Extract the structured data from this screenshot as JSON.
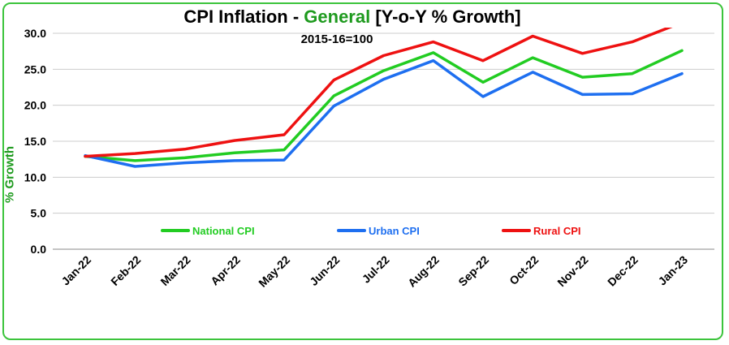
{
  "title": {
    "prefix": "CPI Inflation - ",
    "highlight": "General",
    "suffix": " [Y-o-Y % Growth]"
  },
  "subtitle": "2015-16=100",
  "colors": {
    "title_highlight": "#1e9a1e",
    "frame": "#3cc43c",
    "national": "#22cc22",
    "urban": "#1e6ff0",
    "rural": "#ee1111",
    "gridline": "#cccccc"
  },
  "chart_data": {
    "type": "line",
    "title": "CPI Inflation - General [Y-o-Y % Growth]",
    "subtitle": "2015-16=100",
    "xlabel": "",
    "ylabel": "% Growth",
    "categories": [
      "Jan-22",
      "Feb-22",
      "Mar-22",
      "Apr-22",
      "May-22",
      "Jun-22",
      "Jul-22",
      "Aug-22",
      "Sep-22",
      "Oct-22",
      "Nov-22",
      "Dec-22",
      "Jan-23"
    ],
    "ylim": [
      0,
      30
    ],
    "yticks": [
      "0.0",
      "5.0",
      "10.0",
      "15.0",
      "20.0",
      "25.0",
      "30.0"
    ],
    "grid": true,
    "legend_position": "inside-bottom",
    "series": [
      {
        "name": "National CPI",
        "color": "#22cc22",
        "values": [
          12.9,
          12.3,
          12.7,
          13.4,
          13.8,
          21.3,
          24.8,
          27.3,
          23.2,
          26.6,
          23.9,
          24.4,
          27.6
        ]
      },
      {
        "name": "Urban CPI",
        "color": "#1e6ff0",
        "values": [
          13.0,
          11.5,
          12.0,
          12.3,
          12.4,
          19.9,
          23.6,
          26.2,
          21.2,
          24.6,
          21.5,
          21.6,
          24.4
        ]
      },
      {
        "name": "Rural CPI",
        "color": "#ee1111",
        "values": [
          12.9,
          13.3,
          13.9,
          15.1,
          15.9,
          23.5,
          26.9,
          28.8,
          26.2,
          29.6,
          27.2,
          28.8,
          31.5
        ]
      }
    ]
  }
}
